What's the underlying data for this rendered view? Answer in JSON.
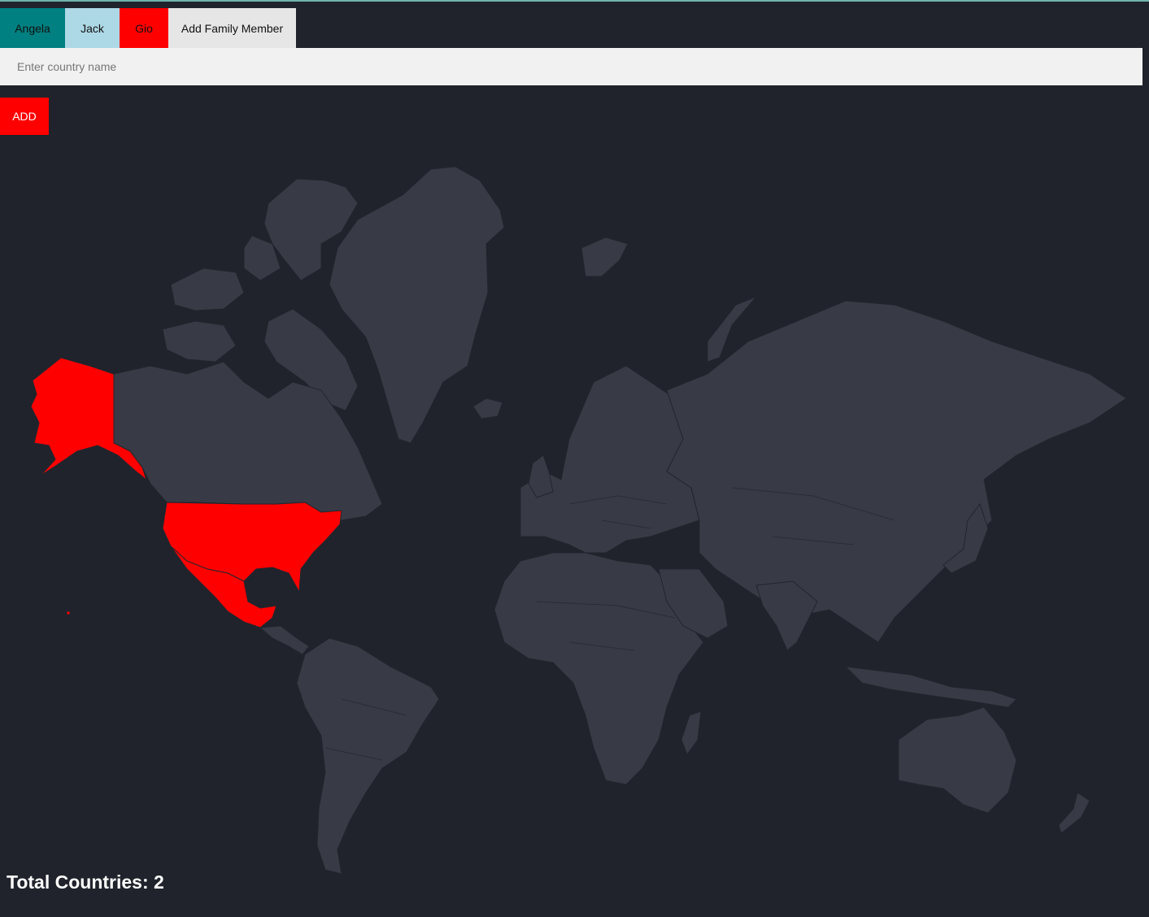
{
  "tabs": {
    "angela": "Angela",
    "jack": "Jack",
    "gio": "Gio",
    "add_member": "Add Family Member"
  },
  "country_input": {
    "placeholder": "Enter country name",
    "value": ""
  },
  "add_button": "ADD",
  "total": {
    "label": "Total Countries: 2"
  },
  "map": {
    "visited_countries": [
      "United States",
      "Mexico"
    ],
    "visited_color": "#ff0000",
    "land_color": "#383b45",
    "background_color": "#20232b"
  },
  "colors": {
    "angela": "#008080",
    "jack": "#add8e6",
    "gio": "#ff0000",
    "add_member": "#e6e6e6"
  }
}
